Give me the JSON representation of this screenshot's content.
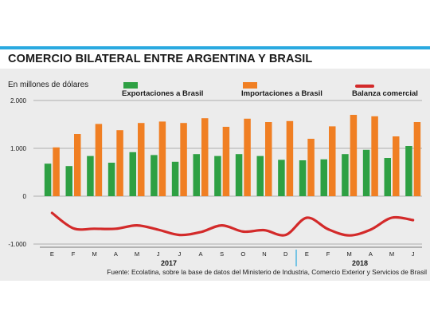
{
  "header": {
    "title": "COMERCIO BILATERAL ENTRE ARGENTINA Y BRASIL",
    "subtitle": "En millones de dólares",
    "source": "Fuente: Ecolatina, sobre la base de datos del Ministerio de Industria, Comercio Exterior y Servicios de Brasil"
  },
  "colors": {
    "accent_bar": "#29a9e0",
    "exports": "#2ea043",
    "imports": "#f07f23",
    "balance": "#d32a2a",
    "background": "#ececec"
  },
  "chart_data": {
    "type": "bar",
    "categories": [
      "E",
      "F",
      "M",
      "A",
      "M",
      "J",
      "J",
      "A",
      "S",
      "O",
      "N",
      "D",
      "E",
      "F",
      "M",
      "A",
      "M",
      "J"
    ],
    "years": [
      {
        "label": "2017",
        "first_index": 0,
        "last_index": 11
      },
      {
        "label": "2018",
        "first_index": 12,
        "last_index": 17
      }
    ],
    "series": [
      {
        "name": "Exportaciones a Brasil",
        "kind": "bar",
        "values": [
          680,
          630,
          840,
          700,
          920,
          860,
          720,
          880,
          840,
          880,
          840,
          760,
          750,
          770,
          880,
          970,
          800,
          1050
        ]
      },
      {
        "name": "Importaciones a Brasil",
        "kind": "bar",
        "values": [
          1020,
          1300,
          1510,
          1380,
          1530,
          1560,
          1530,
          1630,
          1450,
          1620,
          1550,
          1570,
          1200,
          1460,
          1700,
          1670,
          1250,
          1550
        ]
      },
      {
        "name": "Balanza comercial",
        "kind": "line",
        "values": [
          -350,
          -670,
          -680,
          -680,
          -610,
          -700,
          -810,
          -750,
          -610,
          -740,
          -710,
          -810,
          -450,
          -690,
          -820,
          -700,
          -450,
          -500
        ]
      }
    ],
    "yticks": [
      {
        "value": 2000,
        "label": "2.000"
      },
      {
        "value": 1000,
        "label": "1.000"
      },
      {
        "value": 0,
        "label": "0"
      },
      {
        "value": -1000,
        "label": "-1.000"
      }
    ],
    "ylim": [
      -1000,
      2000
    ],
    "grid": true,
    "legend_position": "top"
  }
}
